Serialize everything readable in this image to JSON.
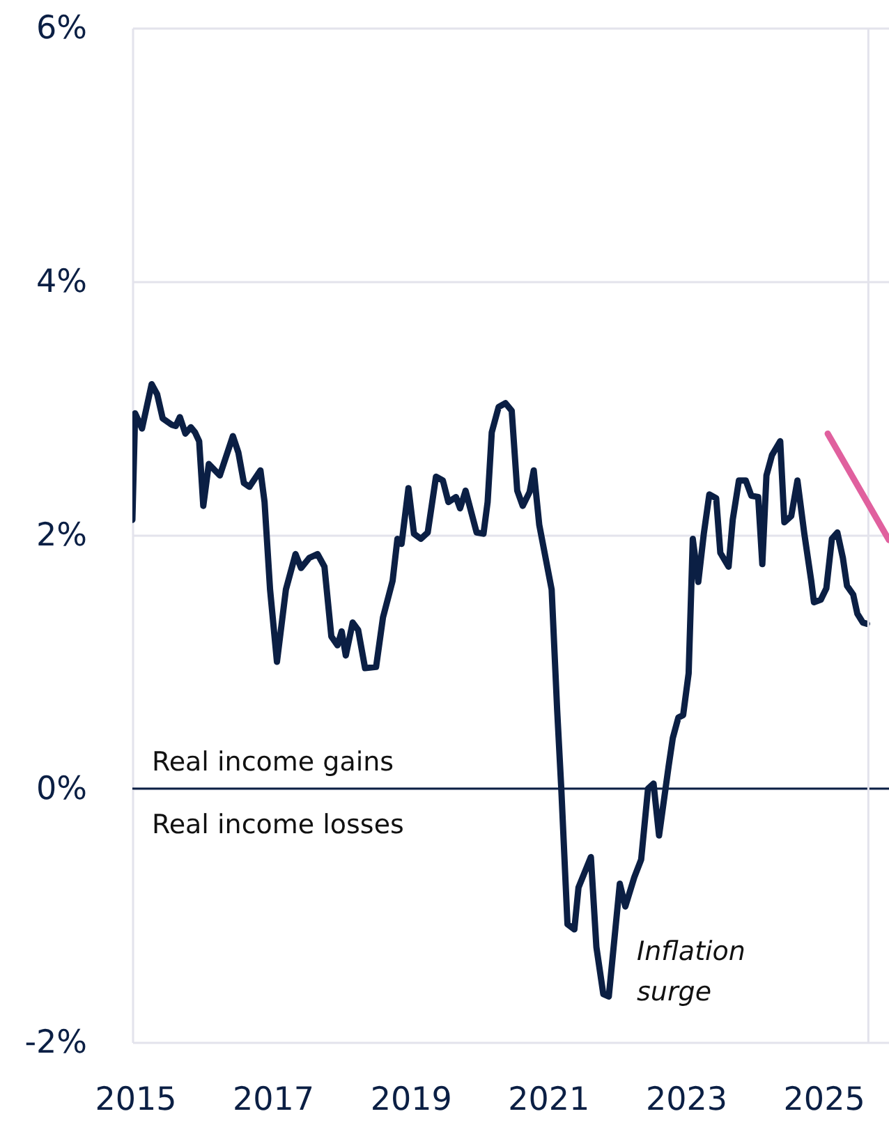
{
  "chart_data": {
    "type": "line",
    "xlim": [
      2014.96,
      2025.95
    ],
    "xticks": [
      2015,
      2017,
      2019,
      2021,
      2023,
      2025
    ],
    "ylim": [
      -2,
      6
    ],
    "yticks": [
      {
        "value": -2,
        "label": "-2%"
      },
      {
        "value": 0,
        "label": "0%"
      },
      {
        "value": 2,
        "label": "2%"
      },
      {
        "value": 4,
        "label": "4%"
      },
      {
        "value": 6,
        "label": "6%"
      }
    ],
    "grid": "y",
    "line_style": "solid",
    "series": [
      {
        "color": "#0b1f44",
        "x": [
          2014.96,
          2015.0,
          2015.1,
          2015.24,
          2015.32,
          2015.4,
          2015.53,
          2015.59,
          2015.65,
          2015.73,
          2015.81,
          2015.87,
          2015.93,
          2015.99,
          2016.07,
          2016.23,
          2016.42,
          2016.5,
          2016.58,
          2016.66,
          2016.82,
          2016.88,
          2016.96,
          2017.06,
          2017.19,
          2017.33,
          2017.41,
          2017.53,
          2017.65,
          2017.75,
          2017.85,
          2017.94,
          2018.0,
          2018.06,
          2018.16,
          2018.24,
          2018.34,
          2018.5,
          2018.6,
          2018.74,
          2018.81,
          2018.87,
          2018.97,
          2019.05,
          2019.15,
          2019.25,
          2019.37,
          2019.47,
          2019.55,
          2019.66,
          2019.72,
          2019.8,
          2019.96,
          2020.06,
          2020.12,
          2020.18,
          2020.28,
          2020.38,
          2020.47,
          2020.55,
          2020.63,
          2020.73,
          2020.79,
          2020.87,
          2021.05,
          2021.13,
          2021.19,
          2021.28,
          2021.38,
          2021.44,
          2021.62,
          2021.7,
          2021.8,
          2021.88,
          2022.04,
          2022.12,
          2022.25,
          2022.35,
          2022.45,
          2022.53,
          2022.61,
          2022.75,
          2022.81,
          2022.89,
          2022.96,
          2023.04,
          2023.1,
          2023.18,
          2023.26,
          2023.34,
          2023.44,
          2023.5,
          2023.62,
          2023.68,
          2023.77,
          2023.87,
          2023.95,
          2024.05,
          2024.11,
          2024.17,
          2024.25,
          2024.37,
          2024.43,
          2024.53,
          2024.62,
          2024.72,
          2024.82,
          2024.86,
          2024.96,
          2025.04,
          2025.12,
          2025.2,
          2025.28,
          2025.34,
          2025.43,
          2025.49,
          2025.57,
          2025.63
        ],
        "values": [
          2.12,
          2.96,
          2.84,
          3.19,
          3.11,
          2.92,
          2.87,
          2.86,
          2.93,
          2.8,
          2.85,
          2.81,
          2.74,
          2.23,
          2.56,
          2.47,
          2.78,
          2.65,
          2.41,
          2.38,
          2.51,
          2.26,
          1.57,
          1.0,
          1.57,
          1.85,
          1.74,
          1.82,
          1.85,
          1.75,
          1.2,
          1.13,
          1.24,
          1.05,
          1.31,
          1.25,
          0.95,
          0.96,
          1.35,
          1.64,
          1.97,
          1.93,
          2.37,
          2.01,
          1.97,
          2.02,
          2.46,
          2.43,
          2.26,
          2.3,
          2.21,
          2.35,
          2.02,
          2.01,
          2.26,
          2.81,
          3.01,
          3.04,
          2.98,
          2.35,
          2.23,
          2.34,
          2.51,
          2.08,
          1.57,
          0.62,
          0.0,
          -1.07,
          -1.11,
          -0.78,
          -0.54,
          -1.25,
          -1.62,
          -1.64,
          -0.75,
          -0.93,
          -0.7,
          -0.56,
          0.0,
          0.04,
          -0.37,
          0.18,
          0.4,
          0.56,
          0.58,
          0.91,
          1.97,
          1.63,
          2.01,
          2.32,
          2.29,
          1.86,
          1.75,
          2.12,
          2.43,
          2.43,
          2.31,
          2.3,
          1.77,
          2.47,
          2.63,
          2.74,
          2.1,
          2.15,
          2.43,
          2.01,
          1.64,
          1.47,
          1.49,
          1.58,
          1.97,
          2.02,
          1.82,
          1.6,
          1.53,
          1.38,
          1.31,
          1.3
        ]
      },
      {
        "color": "#e0609e",
        "x": [
          2025.06,
          2025.95
        ],
        "values": [
          2.8,
          1.96
        ]
      }
    ],
    "ref_lines": [
      {
        "axis": "y",
        "value": 0,
        "color": "#0b1f44"
      },
      {
        "axis": "x",
        "value": 2025.65,
        "color": "#e3e3ec"
      }
    ],
    "annotations": [
      "Real income gains",
      "Real income losses",
      "Inflation surge"
    ]
  }
}
